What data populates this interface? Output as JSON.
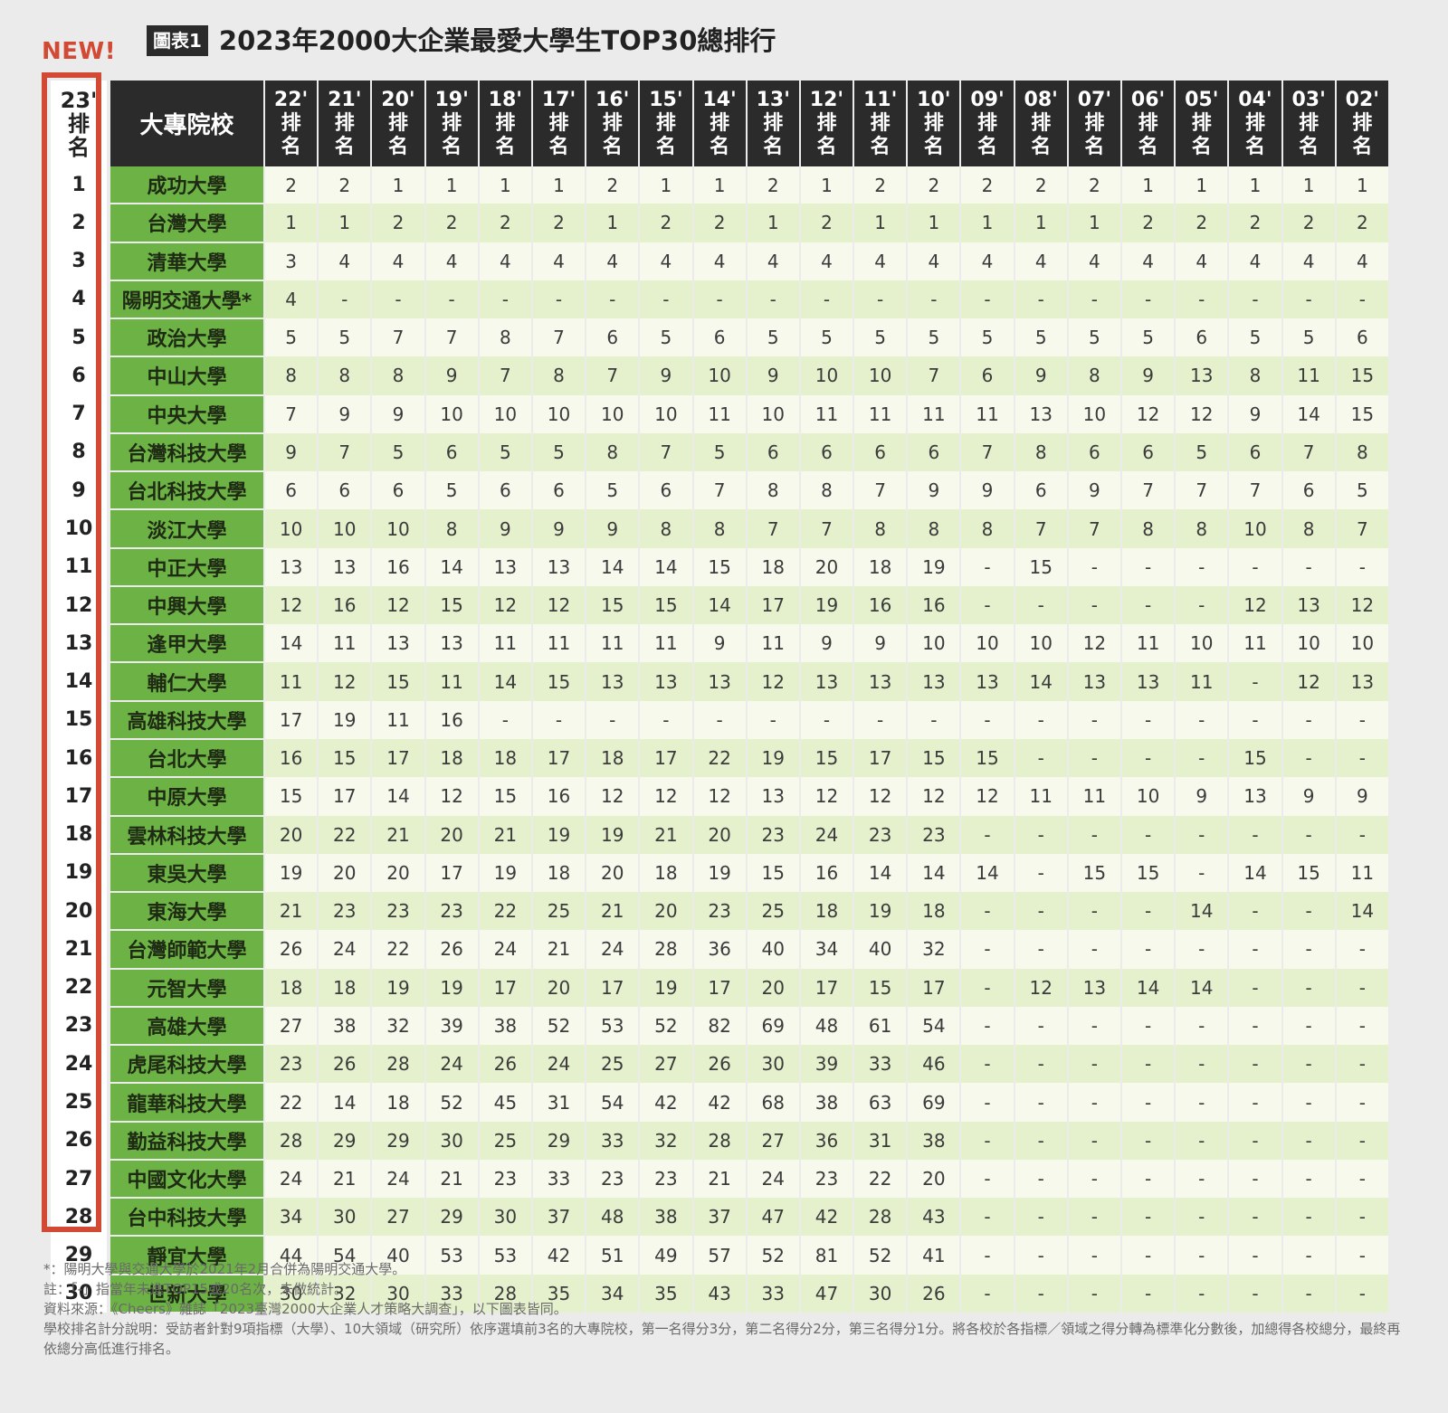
{
  "title_tag": "圖表1",
  "title": "2023年2000大企業最愛大學生TOP30總排行",
  "new_label": "NEW!",
  "header": {
    "rank": [
      "23'",
      "排",
      "名"
    ],
    "school": "大專院校",
    "years": [
      "22'",
      "21'",
      "20'",
      "19'",
      "18'",
      "17'",
      "16'",
      "15'",
      "14'",
      "13'",
      "12'",
      "11'",
      "10'",
      "09'",
      "08'",
      "07'",
      "06'",
      "05'",
      "04'",
      "03'",
      "02'"
    ],
    "year_sub": [
      "排",
      "名"
    ]
  },
  "chart_data": {
    "type": "table",
    "title": "2023年2000大企業最愛大學生TOP30總排行",
    "columns": [
      "23'排名",
      "大專院校",
      "22'排名",
      "21'排名",
      "20'排名",
      "19'排名",
      "18'排名",
      "17'排名",
      "16'排名",
      "15'排名",
      "14'排名",
      "13'排名",
      "12'排名",
      "11'排名",
      "10'排名",
      "09'排名",
      "08'排名",
      "07'排名",
      "06'排名",
      "05'排名",
      "04'排名",
      "03'排名",
      "02'排名"
    ],
    "rows": [
      {
        "rank": "1",
        "school": "成功大學",
        "values": [
          "2",
          "2",
          "1",
          "1",
          "1",
          "1",
          "2",
          "1",
          "1",
          "2",
          "1",
          "2",
          "2",
          "2",
          "2",
          "2",
          "1",
          "1",
          "1",
          "1",
          "1"
        ]
      },
      {
        "rank": "2",
        "school": "台灣大學",
        "values": [
          "1",
          "1",
          "2",
          "2",
          "2",
          "2",
          "1",
          "2",
          "2",
          "1",
          "2",
          "1",
          "1",
          "1",
          "1",
          "1",
          "2",
          "2",
          "2",
          "2",
          "2"
        ]
      },
      {
        "rank": "3",
        "school": "清華大學",
        "values": [
          "3",
          "4",
          "4",
          "4",
          "4",
          "4",
          "4",
          "4",
          "4",
          "4",
          "4",
          "4",
          "4",
          "4",
          "4",
          "4",
          "4",
          "4",
          "4",
          "4",
          "4"
        ]
      },
      {
        "rank": "4",
        "school": "陽明交通大學*",
        "values": [
          "4",
          "-",
          "-",
          "-",
          "-",
          "-",
          "-",
          "-",
          "-",
          "-",
          "-",
          "-",
          "-",
          "-",
          "-",
          "-",
          "-",
          "-",
          "-",
          "-",
          "-"
        ]
      },
      {
        "rank": "5",
        "school": "政治大學",
        "values": [
          "5",
          "5",
          "7",
          "7",
          "8",
          "7",
          "6",
          "5",
          "6",
          "5",
          "5",
          "5",
          "5",
          "5",
          "5",
          "5",
          "5",
          "6",
          "5",
          "5",
          "6"
        ]
      },
      {
        "rank": "6",
        "school": "中山大學",
        "values": [
          "8",
          "8",
          "8",
          "9",
          "7",
          "8",
          "7",
          "9",
          "10",
          "9",
          "10",
          "10",
          "7",
          "6",
          "9",
          "8",
          "9",
          "13",
          "8",
          "11",
          "15"
        ]
      },
      {
        "rank": "7",
        "school": "中央大學",
        "values": [
          "7",
          "9",
          "9",
          "10",
          "10",
          "10",
          "10",
          "10",
          "11",
          "10",
          "11",
          "11",
          "11",
          "11",
          "13",
          "10",
          "12",
          "12",
          "9",
          "14",
          "15"
        ]
      },
      {
        "rank": "8",
        "school": "台灣科技大學",
        "values": [
          "9",
          "7",
          "5",
          "6",
          "5",
          "5",
          "8",
          "7",
          "5",
          "6",
          "6",
          "6",
          "6",
          "7",
          "8",
          "6",
          "6",
          "5",
          "6",
          "7",
          "8"
        ]
      },
      {
        "rank": "9",
        "school": "台北科技大學",
        "values": [
          "6",
          "6",
          "6",
          "5",
          "6",
          "6",
          "5",
          "6",
          "7",
          "8",
          "8",
          "7",
          "9",
          "9",
          "6",
          "9",
          "7",
          "7",
          "7",
          "6",
          "5"
        ]
      },
      {
        "rank": "10",
        "school": "淡江大學",
        "values": [
          "10",
          "10",
          "10",
          "8",
          "9",
          "9",
          "9",
          "8",
          "8",
          "7",
          "7",
          "8",
          "8",
          "8",
          "7",
          "7",
          "8",
          "8",
          "10",
          "8",
          "7"
        ]
      },
      {
        "rank": "11",
        "school": "中正大學",
        "values": [
          "13",
          "13",
          "16",
          "14",
          "13",
          "13",
          "14",
          "14",
          "15",
          "18",
          "20",
          "18",
          "19",
          "-",
          "15",
          "-",
          "-",
          "-",
          "-",
          "-",
          "-"
        ]
      },
      {
        "rank": "12",
        "school": "中興大學",
        "values": [
          "12",
          "16",
          "12",
          "15",
          "12",
          "12",
          "15",
          "15",
          "14",
          "17",
          "19",
          "16",
          "16",
          "-",
          "-",
          "-",
          "-",
          "-",
          "12",
          "13",
          "12"
        ]
      },
      {
        "rank": "13",
        "school": "逢甲大學",
        "values": [
          "14",
          "11",
          "13",
          "13",
          "11",
          "11",
          "11",
          "11",
          "9",
          "11",
          "9",
          "9",
          "10",
          "10",
          "10",
          "12",
          "11",
          "10",
          "11",
          "10",
          "10"
        ]
      },
      {
        "rank": "14",
        "school": "輔仁大學",
        "values": [
          "11",
          "12",
          "15",
          "11",
          "14",
          "15",
          "13",
          "13",
          "13",
          "12",
          "13",
          "13",
          "13",
          "13",
          "14",
          "13",
          "13",
          "11",
          "-",
          "12",
          "13"
        ]
      },
      {
        "rank": "15",
        "school": "高雄科技大學",
        "values": [
          "17",
          "19",
          "11",
          "16",
          "-",
          "-",
          "-",
          "-",
          "-",
          "-",
          "-",
          "-",
          "-",
          "-",
          "-",
          "-",
          "-",
          "-",
          "-",
          "-",
          "-"
        ]
      },
      {
        "rank": "16",
        "school": "台北大學",
        "values": [
          "16",
          "15",
          "17",
          "18",
          "18",
          "17",
          "18",
          "17",
          "22",
          "19",
          "15",
          "17",
          "15",
          "15",
          "-",
          "-",
          "-",
          "-",
          "15",
          "-",
          "-"
        ]
      },
      {
        "rank": "17",
        "school": "中原大學",
        "values": [
          "15",
          "17",
          "14",
          "12",
          "15",
          "16",
          "12",
          "12",
          "12",
          "13",
          "12",
          "12",
          "12",
          "12",
          "11",
          "11",
          "10",
          "9",
          "13",
          "9",
          "9"
        ]
      },
      {
        "rank": "18",
        "school": "雲林科技大學",
        "values": [
          "20",
          "22",
          "21",
          "20",
          "21",
          "19",
          "19",
          "21",
          "20",
          "23",
          "24",
          "23",
          "23",
          "-",
          "-",
          "-",
          "-",
          "-",
          "-",
          "-",
          "-"
        ]
      },
      {
        "rank": "19",
        "school": "東吳大學",
        "values": [
          "19",
          "20",
          "20",
          "17",
          "19",
          "18",
          "20",
          "18",
          "19",
          "15",
          "16",
          "14",
          "14",
          "14",
          "-",
          "15",
          "15",
          "-",
          "14",
          "15",
          "11"
        ]
      },
      {
        "rank": "20",
        "school": "東海大學",
        "values": [
          "21",
          "23",
          "23",
          "23",
          "22",
          "25",
          "21",
          "20",
          "23",
          "25",
          "18",
          "19",
          "18",
          "-",
          "-",
          "-",
          "-",
          "14",
          "-",
          "-",
          "14"
        ]
      },
      {
        "rank": "21",
        "school": "台灣師範大學",
        "values": [
          "26",
          "24",
          "22",
          "26",
          "24",
          "21",
          "24",
          "28",
          "36",
          "40",
          "34",
          "40",
          "32",
          "-",
          "-",
          "-",
          "-",
          "-",
          "-",
          "-",
          "-"
        ]
      },
      {
        "rank": "22",
        "school": "元智大學",
        "values": [
          "18",
          "18",
          "19",
          "19",
          "17",
          "20",
          "17",
          "19",
          "17",
          "20",
          "17",
          "15",
          "17",
          "-",
          "12",
          "13",
          "14",
          "14",
          "-",
          "-",
          "-"
        ]
      },
      {
        "rank": "23",
        "school": "高雄大學",
        "values": [
          "27",
          "38",
          "32",
          "39",
          "38",
          "52",
          "53",
          "52",
          "82",
          "69",
          "48",
          "61",
          "54",
          "-",
          "-",
          "-",
          "-",
          "-",
          "-",
          "-",
          "-"
        ]
      },
      {
        "rank": "24",
        "school": "虎尾科技大學",
        "values": [
          "23",
          "26",
          "28",
          "24",
          "26",
          "24",
          "25",
          "27",
          "26",
          "30",
          "39",
          "33",
          "46",
          "-",
          "-",
          "-",
          "-",
          "-",
          "-",
          "-",
          "-"
        ]
      },
      {
        "rank": "25",
        "school": "龍華科技大學",
        "values": [
          "22",
          "14",
          "18",
          "52",
          "45",
          "31",
          "54",
          "42",
          "42",
          "68",
          "38",
          "63",
          "69",
          "-",
          "-",
          "-",
          "-",
          "-",
          "-",
          "-",
          "-"
        ]
      },
      {
        "rank": "26",
        "school": "勤益科技大學",
        "values": [
          "28",
          "29",
          "29",
          "30",
          "25",
          "29",
          "33",
          "32",
          "28",
          "27",
          "36",
          "31",
          "38",
          "-",
          "-",
          "-",
          "-",
          "-",
          "-",
          "-",
          "-"
        ]
      },
      {
        "rank": "27",
        "school": "中國文化大學",
        "values": [
          "24",
          "21",
          "24",
          "21",
          "23",
          "33",
          "23",
          "23",
          "21",
          "24",
          "23",
          "22",
          "20",
          "-",
          "-",
          "-",
          "-",
          "-",
          "-",
          "-",
          "-"
        ]
      },
      {
        "rank": "28",
        "school": "台中科技大學",
        "values": [
          "34",
          "30",
          "27",
          "29",
          "30",
          "37",
          "48",
          "38",
          "37",
          "47",
          "42",
          "28",
          "43",
          "-",
          "-",
          "-",
          "-",
          "-",
          "-",
          "-",
          "-"
        ]
      },
      {
        "rank": "29",
        "school": "靜宜大學",
        "values": [
          "44",
          "54",
          "40",
          "53",
          "53",
          "42",
          "51",
          "49",
          "57",
          "52",
          "81",
          "52",
          "41",
          "-",
          "-",
          "-",
          "-",
          "-",
          "-",
          "-",
          "-"
        ]
      },
      {
        "rank": "30",
        "school": "世新大學",
        "values": [
          "30",
          "32",
          "30",
          "33",
          "28",
          "35",
          "34",
          "35",
          "43",
          "33",
          "47",
          "30",
          "26",
          "-",
          "-",
          "-",
          "-",
          "-",
          "-",
          "-",
          "-"
        ]
      }
    ]
  },
  "notes": [
    "*：陽明大學與交通大學於2021年2月合併為陽明交通大學。",
    "註：「-」指當年未進TOP15或20名次，未做統計。",
    "資料來源：《Cheers》雜誌「2023臺灣2000大企業人才策略大調查」，以下圖表皆同。",
    "學校排名計分說明：受訪者針對9項指標（大學）、10大領域（研究所）依序選填前3名的大專院校，第一名得分3分，第二名得分2分，第三名得分1分。將各校於各指標／領域之得分轉為標準化分數後，加總得各校總分，最終再依總分高低進行排名。"
  ],
  "colors": {
    "accent_red": "#d24a33",
    "header_dark": "#2b2b2b",
    "school_green": "#6db245",
    "row_light": "#f6f9ec",
    "row_green": "#e5f0cd"
  }
}
